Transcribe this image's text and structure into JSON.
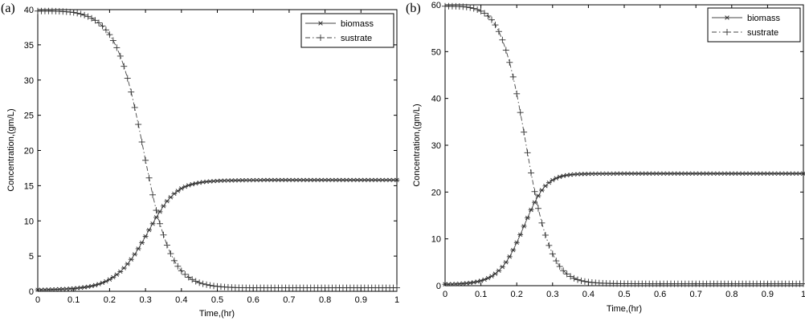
{
  "chart_data": [
    {
      "type": "line",
      "panel_label": "(a)",
      "xlabel": "Time,(hr)",
      "ylabel": "Concentration,(gm/L)",
      "xlim": [
        0,
        1
      ],
      "ylim": [
        0,
        40
      ],
      "xticks": [
        "0",
        "0.1",
        "0.2",
        "0.3",
        "0.4",
        "0.5",
        "0.6",
        "0.7",
        "0.8",
        "0.9",
        "1"
      ],
      "yticks": [
        "0",
        "5",
        "10",
        "15",
        "20",
        "25",
        "30",
        "35",
        "40"
      ],
      "legend_position": "top-right",
      "grid": false,
      "x": [
        0,
        0.01,
        0.02,
        0.03,
        0.04,
        0.05,
        0.06,
        0.07,
        0.08,
        0.09,
        0.1,
        0.11,
        0.12,
        0.13,
        0.14,
        0.15,
        0.16,
        0.17,
        0.18,
        0.19,
        0.2,
        0.21,
        0.22,
        0.23,
        0.24,
        0.25,
        0.26,
        0.27,
        0.28,
        0.29,
        0.3,
        0.31,
        0.32,
        0.33,
        0.34,
        0.35,
        0.36,
        0.37,
        0.38,
        0.39,
        0.4,
        0.41,
        0.42,
        0.43,
        0.44,
        0.45,
        0.46,
        0.47,
        0.48,
        0.49,
        0.5,
        0.51,
        0.52,
        0.53,
        0.54,
        0.55,
        0.56,
        0.57,
        0.58,
        0.59,
        0.6,
        0.61,
        0.62,
        0.63,
        0.64,
        0.65,
        0.66,
        0.67,
        0.68,
        0.69,
        0.7,
        0.71,
        0.72,
        0.73,
        0.74,
        0.75,
        0.76,
        0.77,
        0.78,
        0.79,
        0.8,
        0.81,
        0.82,
        0.83,
        0.84,
        0.85,
        0.86,
        0.87,
        0.88,
        0.89,
        0.9,
        0.91,
        0.92,
        0.93,
        0.94,
        0.95,
        0.96,
        0.97,
        0.98,
        0.99,
        1
      ],
      "series": [
        {
          "name": "biomass",
          "marker": "asterisk",
          "line": "solid",
          "values": [
            0.21,
            0.22,
            0.23,
            0.25,
            0.26,
            0.28,
            0.3,
            0.32,
            0.34,
            0.37,
            0.4,
            0.45,
            0.5,
            0.57,
            0.65,
            0.75,
            0.87,
            1.02,
            1.2,
            1.42,
            1.68,
            2.0,
            2.37,
            2.8,
            3.3,
            3.88,
            4.53,
            5.25,
            6.05,
            6.9,
            7.8,
            8.7,
            9.6,
            10.5,
            11.3,
            12.1,
            12.8,
            13.35,
            13.85,
            14.25,
            14.6,
            14.85,
            15.05,
            15.2,
            15.32,
            15.42,
            15.5,
            15.56,
            15.61,
            15.65,
            15.68,
            15.7,
            15.72,
            15.73,
            15.74,
            15.75,
            15.76,
            15.77,
            15.78,
            15.78,
            15.79,
            15.79,
            15.79,
            15.8,
            15.8,
            15.8,
            15.8,
            15.8,
            15.8,
            15.8,
            15.8,
            15.8,
            15.8,
            15.8,
            15.8,
            15.8,
            15.8,
            15.8,
            15.8,
            15.8,
            15.8,
            15.8,
            15.8,
            15.8,
            15.8,
            15.8,
            15.8,
            15.8,
            15.8,
            15.8,
            15.8,
            15.8,
            15.8,
            15.8,
            15.8,
            15.8,
            15.8,
            15.8,
            15.8,
            15.8,
            15.8
          ]
        },
        {
          "name": "sustrate",
          "marker": "plus",
          "line": "dashdot",
          "values": [
            39.8,
            39.8,
            39.8,
            39.8,
            39.8,
            39.78,
            39.76,
            39.74,
            39.7,
            39.65,
            39.6,
            39.5,
            39.38,
            39.22,
            39.02,
            38.78,
            38.48,
            38.12,
            37.68,
            37.12,
            36.45,
            35.62,
            34.6,
            33.4,
            31.95,
            30.25,
            28.3,
            26.1,
            23.7,
            21.2,
            18.6,
            16.1,
            13.7,
            11.5,
            9.6,
            8.0,
            6.55,
            5.35,
            4.35,
            3.55,
            2.9,
            2.4,
            2.0,
            1.68,
            1.42,
            1.22,
            1.06,
            0.94,
            0.84,
            0.76,
            0.7,
            0.65,
            0.61,
            0.58,
            0.55,
            0.53,
            0.52,
            0.51,
            0.5,
            0.5,
            0.5,
            0.5,
            0.5,
            0.5,
            0.5,
            0.5,
            0.5,
            0.5,
            0.5,
            0.5,
            0.5,
            0.5,
            0.5,
            0.5,
            0.5,
            0.5,
            0.5,
            0.5,
            0.5,
            0.5,
            0.5,
            0.5,
            0.5,
            0.5,
            0.5,
            0.5,
            0.5,
            0.5,
            0.5,
            0.5,
            0.5,
            0.5,
            0.5,
            0.5,
            0.5,
            0.5,
            0.5,
            0.5,
            0.5,
            0.5,
            0.5
          ]
        }
      ]
    },
    {
      "type": "line",
      "panel_label": "(b)",
      "xlabel": "Time,(hr)",
      "ylabel": "Concentration,(gm/L)",
      "xlim": [
        0,
        1
      ],
      "ylim": [
        0,
        60
      ],
      "xticks": [
        "0",
        "0.1",
        "0.2",
        "0.3",
        "0.4",
        "0.5",
        "0.6",
        "0.7",
        "0.8",
        "0.9",
        "1"
      ],
      "yticks": [
        "0",
        "10",
        "20",
        "30",
        "40",
        "50",
        "60"
      ],
      "legend_position": "top-right",
      "grid": false,
      "x": [
        0,
        0.01,
        0.02,
        0.03,
        0.04,
        0.05,
        0.06,
        0.07,
        0.08,
        0.09,
        0.1,
        0.11,
        0.12,
        0.13,
        0.14,
        0.15,
        0.16,
        0.17,
        0.18,
        0.19,
        0.2,
        0.21,
        0.22,
        0.23,
        0.24,
        0.25,
        0.26,
        0.27,
        0.28,
        0.29,
        0.3,
        0.31,
        0.32,
        0.33,
        0.34,
        0.35,
        0.36,
        0.37,
        0.38,
        0.39,
        0.4,
        0.41,
        0.42,
        0.43,
        0.44,
        0.45,
        0.46,
        0.47,
        0.48,
        0.49,
        0.5,
        0.51,
        0.52,
        0.53,
        0.54,
        0.55,
        0.56,
        0.57,
        0.58,
        0.59,
        0.6,
        0.61,
        0.62,
        0.63,
        0.64,
        0.65,
        0.66,
        0.67,
        0.68,
        0.69,
        0.7,
        0.71,
        0.72,
        0.73,
        0.74,
        0.75,
        0.76,
        0.77,
        0.78,
        0.79,
        0.8,
        0.81,
        0.82,
        0.83,
        0.84,
        0.85,
        0.86,
        0.87,
        0.88,
        0.89,
        0.9,
        0.91,
        0.92,
        0.93,
        0.94,
        0.95,
        0.96,
        0.97,
        0.98,
        0.99,
        1
      ],
      "series": [
        {
          "name": "biomass",
          "marker": "asterisk",
          "line": "solid",
          "values": [
            0.3,
            0.32,
            0.34,
            0.37,
            0.4,
            0.45,
            0.52,
            0.6,
            0.72,
            0.87,
            1.05,
            1.3,
            1.62,
            2.02,
            2.55,
            3.2,
            4.0,
            5.0,
            6.2,
            7.6,
            9.2,
            10.9,
            12.7,
            14.5,
            16.2,
            17.8,
            19.2,
            20.4,
            21.3,
            22.0,
            22.55,
            22.95,
            23.25,
            23.45,
            23.6,
            23.7,
            23.77,
            23.82,
            23.85,
            23.87,
            23.89,
            23.9,
            23.91,
            23.92,
            23.92,
            23.93,
            23.93,
            23.93,
            23.94,
            23.94,
            23.94,
            23.94,
            23.94,
            23.94,
            23.94,
            23.94,
            23.94,
            23.94,
            23.94,
            23.94,
            23.94,
            23.94,
            23.94,
            23.94,
            23.94,
            23.94,
            23.94,
            23.94,
            23.94,
            23.94,
            23.94,
            23.94,
            23.94,
            23.94,
            23.94,
            23.94,
            23.94,
            23.94,
            23.94,
            23.94,
            23.94,
            23.94,
            23.94,
            23.94,
            23.94,
            23.94,
            23.94,
            23.94,
            23.94,
            23.94,
            23.94,
            23.94,
            23.94,
            23.94,
            23.94,
            23.94,
            23.94,
            23.94,
            23.94,
            23.94,
            23.94
          ]
        },
        {
          "name": "sustrate",
          "marker": "plus",
          "line": "dashdot",
          "values": [
            59.7,
            59.7,
            59.7,
            59.68,
            59.65,
            59.6,
            59.52,
            59.4,
            59.22,
            58.98,
            58.65,
            58.2,
            57.6,
            56.8,
            55.7,
            54.3,
            52.5,
            50.3,
            47.7,
            44.6,
            41.0,
            37.0,
            32.8,
            28.4,
            24.1,
            20.1,
            16.5,
            13.4,
            10.8,
            8.6,
            6.8,
            5.3,
            4.1,
            3.2,
            2.5,
            1.98,
            1.58,
            1.28,
            1.06,
            0.9,
            0.78,
            0.69,
            0.62,
            0.57,
            0.53,
            0.5,
            0.48,
            0.46,
            0.45,
            0.44,
            0.43,
            0.42,
            0.42,
            0.41,
            0.41,
            0.41,
            0.41,
            0.4,
            0.4,
            0.4,
            0.4,
            0.4,
            0.4,
            0.4,
            0.4,
            0.4,
            0.4,
            0.4,
            0.4,
            0.4,
            0.4,
            0.4,
            0.4,
            0.4,
            0.4,
            0.4,
            0.4,
            0.4,
            0.4,
            0.4,
            0.4,
            0.4,
            0.4,
            0.4,
            0.4,
            0.4,
            0.4,
            0.4,
            0.4,
            0.4,
            0.4,
            0.4,
            0.4,
            0.4,
            0.4,
            0.4,
            0.4,
            0.4,
            0.4,
            0.4,
            0.4
          ]
        }
      ]
    }
  ]
}
